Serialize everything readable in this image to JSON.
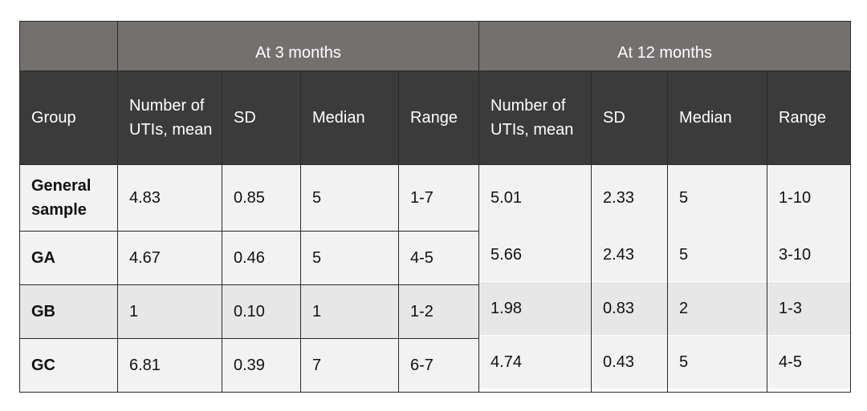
{
  "table": {
    "periods": [
      "At 3 months",
      "At 12 months"
    ],
    "columns": [
      "Group",
      "Number of UTIs, mean",
      "SD",
      "Median",
      "Range",
      "Number of UTIs, mean",
      "SD",
      "Median",
      "Range"
    ],
    "rows": [
      {
        "group": "General sample",
        "m3": {
          "mean": "4.83",
          "sd": "0.85",
          "median": "5",
          "range": "1-7"
        },
        "m12": {
          "mean": "5.01",
          "sd": "2.33",
          "median": "5",
          "range": "1-10"
        }
      },
      {
        "group": "GA",
        "m3": {
          "mean": "4.67",
          "sd": "0.46",
          "median": "5",
          "range": "4-5"
        },
        "m12": {
          "mean": "5.66",
          "sd": "2.43",
          "median": "5",
          "range": "3-10"
        }
      },
      {
        "group": "GB",
        "m3": {
          "mean": "1",
          "sd": "0.10",
          "median": "1",
          "range": "1-2"
        },
        "m12": {
          "mean": "1.98",
          "sd": "0.83",
          "median": "2",
          "range": "1-3"
        }
      },
      {
        "group": "GC",
        "m3": {
          "mean": "6.81",
          "sd": "0.39",
          "median": "7",
          "range": "6-7"
        },
        "m12": {
          "mean": "4.74",
          "sd": "0.43",
          "median": "5",
          "range": "4-5"
        }
      }
    ]
  },
  "colors": {
    "period_header_bg": "#757070",
    "column_header_bg": "#3b3b3b",
    "row_shade_light": "#f2f2f2",
    "row_shade_dark": "#e7e7e7"
  }
}
